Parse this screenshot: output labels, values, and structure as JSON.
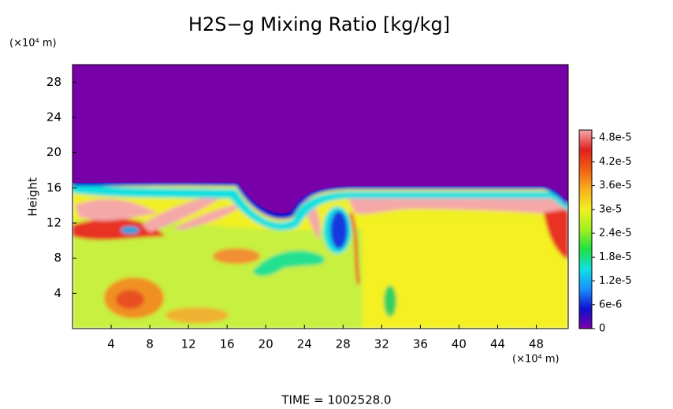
{
  "chart_data": {
    "type": "heatmap",
    "title": "H2S−g Mixing Ratio [kg/kg]",
    "ylabel": "Height",
    "y_unit_label": "(×10⁴ m)",
    "x_unit_label": "(×10⁴ m)",
    "footer": "TIME = 1002528.0",
    "xlim": [
      0,
      51.3
    ],
    "ylim": [
      0,
      30
    ],
    "xticks": [
      4,
      8,
      12,
      16,
      20,
      24,
      28,
      32,
      36,
      40,
      44,
      48
    ],
    "yticks": [
      4,
      8,
      12,
      16,
      20,
      24,
      28
    ],
    "clim": [
      0,
      5e-05
    ],
    "cticks": [
      0,
      {
        "value": 6e-06,
        "label": "6e-6"
      },
      {
        "value": 1.2e-05,
        "label": "1.2e-5"
      },
      {
        "value": 1.8e-05,
        "label": "1.8e-5"
      },
      {
        "value": 2.4e-05,
        "label": "2.4e-5"
      },
      {
        "value": 3e-05,
        "label": "3e-5"
      },
      {
        "value": 3.6e-05,
        "label": "3.6e-5"
      },
      {
        "value": 4.2e-05,
        "label": "4.2e-5"
      },
      {
        "value": 4.8e-05,
        "label": "4.8e-5"
      }
    ],
    "colormap": [
      "#7800a8",
      "#1010d0",
      "#1890ff",
      "#10e0e0",
      "#20e040",
      "#a0f020",
      "#f0f020",
      "#f8b020",
      "#f06010",
      "#e02020",
      "#f4a8a8"
    ]
  }
}
